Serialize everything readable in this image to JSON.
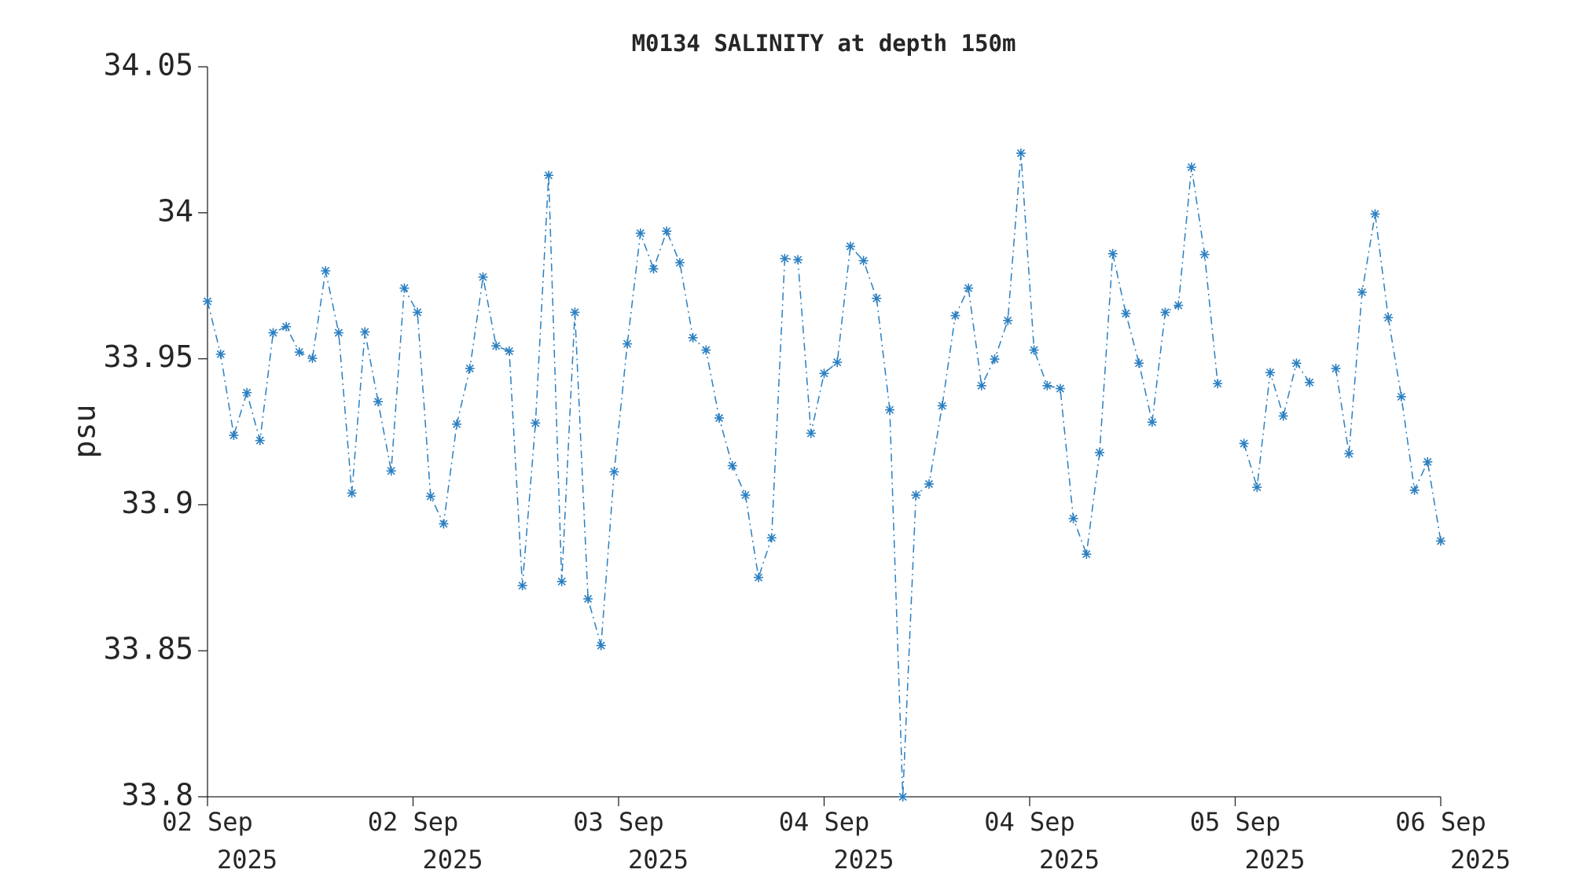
{
  "chart_data": {
    "type": "line",
    "title": "M0134 SALINITY at depth 150m",
    "ylabel": "psu",
    "x_tick_labels": [
      [
        "02 Sep",
        "2025"
      ],
      [
        "02 Sep",
        "2025"
      ],
      [
        "03 Sep",
        "2025"
      ],
      [
        "04 Sep",
        "2025"
      ],
      [
        "04 Sep",
        "2025"
      ],
      [
        "05 Sep",
        "2025"
      ],
      [
        "06 Sep",
        "2025"
      ]
    ],
    "ylim": [
      33.8,
      34.05
    ],
    "yticks": [
      33.8,
      33.85,
      33.9,
      33.95,
      34,
      34.05
    ],
    "grid": false,
    "series": [
      {
        "name": "salinity",
        "color": "#2a7fc1",
        "values": [
          33.9697,
          33.9516,
          33.9238,
          33.9384,
          33.922,
          33.9589,
          33.961,
          33.9523,
          33.9502,
          33.9801,
          33.9589,
          33.904,
          33.9592,
          33.9353,
          33.9116,
          33.9742,
          33.9659,
          33.9029,
          33.8935,
          33.9276,
          33.9467,
          33.978,
          33.9544,
          33.9526,
          33.8723,
          33.928,
          34.0128,
          33.8737,
          33.9659,
          33.8678,
          33.8518,
          33.9113,
          33.9551,
          33.993,
          33.9808,
          33.9937,
          33.9829,
          33.9572,
          33.953,
          33.9297,
          33.9134,
          33.9033,
          33.8751,
          33.8887,
          33.9843,
          33.9839,
          33.9245,
          33.945,
          33.9488,
          33.9885,
          33.9836,
          33.9707,
          33.9325,
          33.8,
          33.9033,
          33.9071,
          33.9339,
          33.9648,
          33.9742,
          33.9408,
          33.9499,
          33.9631,
          34.0204,
          33.953,
          33.9408,
          33.9398,
          33.8953,
          33.8831,
          33.9179,
          33.986,
          33.9655,
          33.9485,
          33.9283,
          33.9659,
          33.9683,
          34.0156,
          33.9857,
          33.9415,
          null,
          33.921,
          33.906,
          33.9453,
          33.9304,
          33.9485,
          33.9419,
          null,
          33.9467,
          33.9175,
          33.9728,
          33.9996,
          33.9641,
          33.937,
          33.905,
          33.9147,
          33.8876
        ]
      }
    ]
  }
}
